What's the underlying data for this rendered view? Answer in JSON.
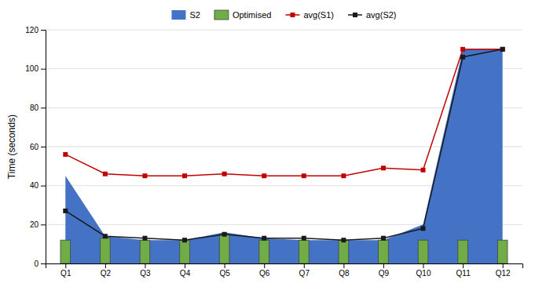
{
  "chart_data": {
    "type": "bar",
    "y_label": "Time (seconds)",
    "categories": [
      "Q1",
      "Q2",
      "Q3",
      "Q4",
      "Q5",
      "Q6",
      "Q7",
      "Q8",
      "Q9",
      "Q10",
      "Q11",
      "Q12"
    ],
    "series": [
      {
        "name": "S2",
        "type": "area",
        "color": "#4472C4",
        "values": [
          45,
          14,
          12,
          12,
          16,
          13,
          12,
          12,
          12,
          20,
          110,
          110
        ]
      },
      {
        "name": "Optimised",
        "type": "bar",
        "color": "#70AD47",
        "values": [
          12,
          13,
          12,
          12,
          15,
          12,
          12,
          12,
          12,
          12,
          12,
          12
        ]
      },
      {
        "name": "avg(S1)",
        "type": "line",
        "color": "#C00000",
        "marker": "square",
        "values": [
          56,
          46,
          45,
          45,
          46,
          45,
          45,
          45,
          49,
          48,
          110,
          110
        ]
      },
      {
        "name": "avg(S2)",
        "type": "line",
        "color": "#1a1a1a",
        "marker": "square",
        "values": [
          27,
          14,
          13,
          12,
          15,
          13,
          13,
          12,
          13,
          18,
          106,
          110
        ]
      }
    ],
    "ylim": [
      0,
      120
    ],
    "yticks": [
      0,
      20,
      40,
      60,
      80,
      100,
      120
    ],
    "grid": true,
    "legend": "top"
  }
}
